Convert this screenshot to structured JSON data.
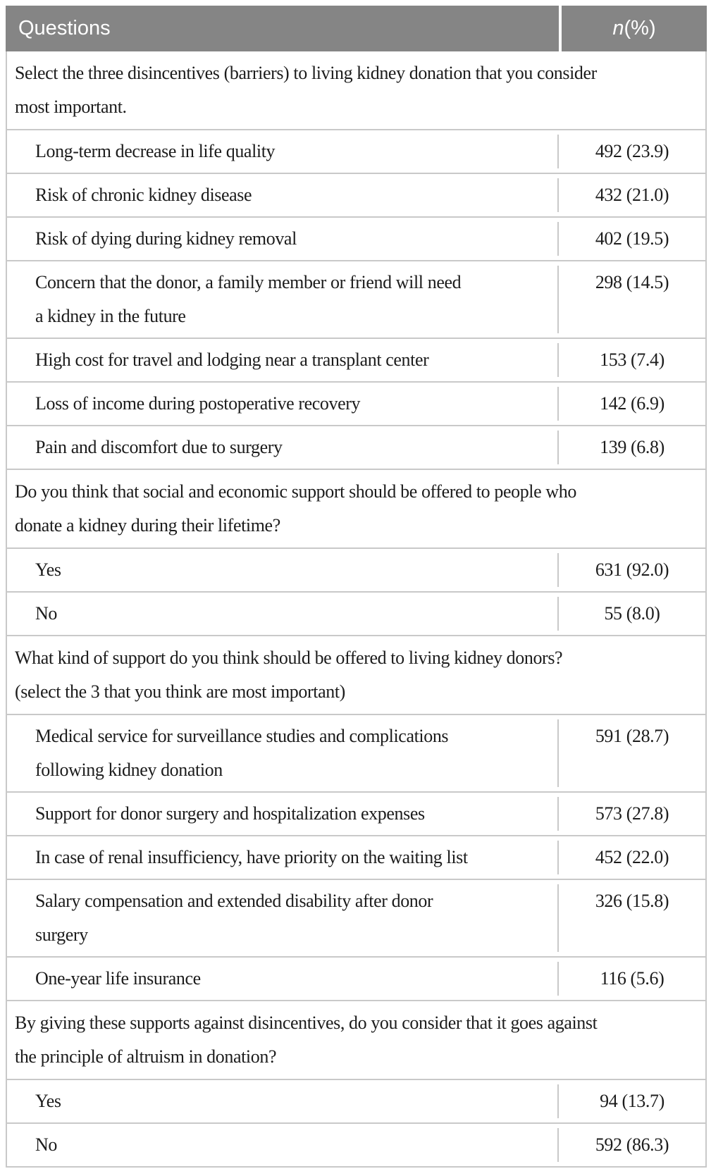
{
  "table": {
    "colors": {
      "header_bg": "#858585",
      "header_text": "#ffffff",
      "body_text": "#1c1c1c",
      "divider": "#c9c9c9"
    },
    "header": {
      "questions_label": "Questions",
      "n_label_italic": "n",
      "n_label_rest": " (%)"
    },
    "rows": [
      {
        "type": "question",
        "text": "Select the three disincentives (barriers) to living kidney donation that you consider\nmost important."
      },
      {
        "type": "item",
        "text": "Long-term decrease in life quality",
        "value": "492 (23.9)"
      },
      {
        "type": "item",
        "text": "Risk of chronic kidney disease",
        "value": "432 (21.0)"
      },
      {
        "type": "item",
        "text": "Risk of dying during kidney removal",
        "value": "402 (19.5)"
      },
      {
        "type": "item",
        "text": "Concern that the donor, a family member or friend will need\na kidney in the future",
        "value": "298 (14.5)"
      },
      {
        "type": "item",
        "text": "High cost for travel and lodging near a transplant center",
        "value": "153 (7.4)"
      },
      {
        "type": "item",
        "text": "Loss of income during postoperative recovery",
        "value": "142 (6.9)"
      },
      {
        "type": "item",
        "text": "Pain and discomfort due to surgery",
        "value": "139 (6.8)"
      },
      {
        "type": "question",
        "text": "Do you think that social and economic support should be offered to people who\ndonate a kidney during their lifetime?"
      },
      {
        "type": "item",
        "text": "Yes",
        "value": "631 (92.0)"
      },
      {
        "type": "item",
        "text": "No",
        "value": "55 (8.0)"
      },
      {
        "type": "question",
        "text": "What kind of support do you think should be offered to living kidney donors?\n(select the 3 that you think are most important)"
      },
      {
        "type": "item",
        "text": "Medical service for surveillance studies and complications\nfollowing kidney donation",
        "value": "591 (28.7)"
      },
      {
        "type": "item",
        "text": "Support for donor surgery and hospitalization expenses",
        "value": "573 (27.8)"
      },
      {
        "type": "item",
        "text": "In case of renal insufficiency, have priority on the waiting list",
        "value": "452 (22.0)"
      },
      {
        "type": "item",
        "text": "Salary compensation and extended disability after donor\nsurgery",
        "value": "326 (15.8)"
      },
      {
        "type": "item",
        "text": "One-year life insurance",
        "value": "116 (5.6)"
      },
      {
        "type": "question",
        "text": "By giving these supports against disincentives, do you consider that it goes against\nthe principle of altruism in donation?"
      },
      {
        "type": "item",
        "text": "Yes",
        "value": "94 (13.7)"
      },
      {
        "type": "item",
        "text": "No",
        "value": "592 (86.3)"
      }
    ]
  }
}
